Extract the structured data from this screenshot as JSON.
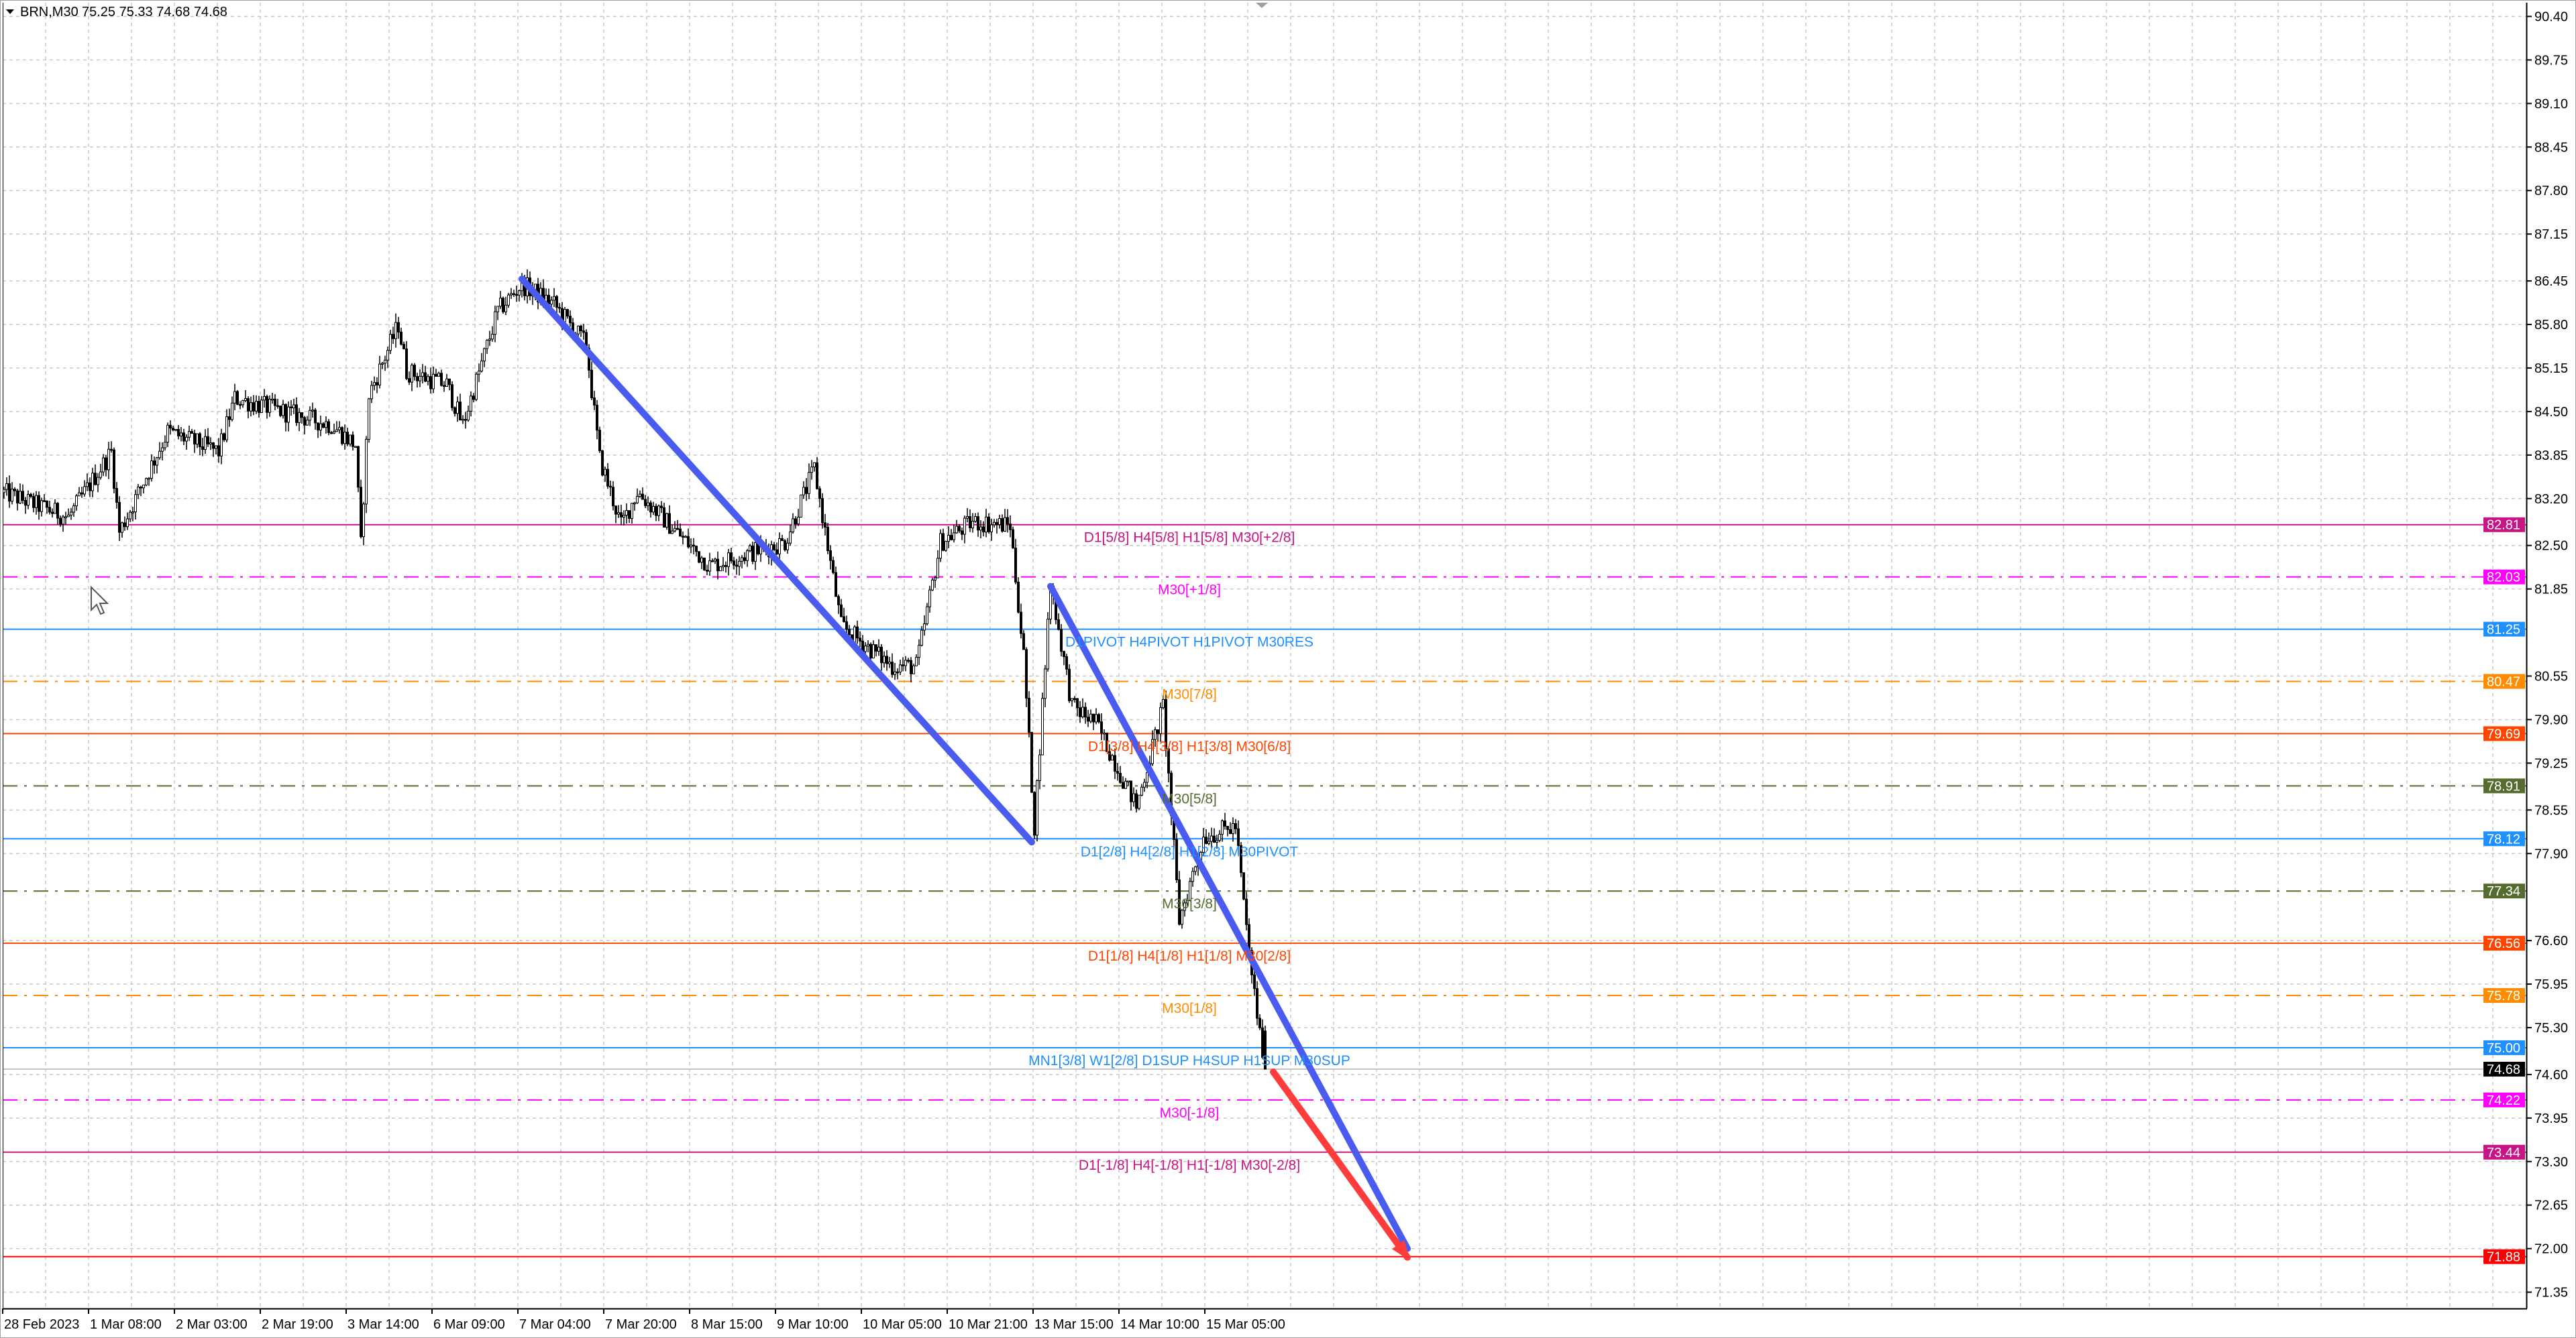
{
  "header": {
    "symbol": "BRN,M30",
    "ohlc": "75.25 75.33 74.68 74.68",
    "menu_icon": "triangle-down-icon"
  },
  "chart_data": {
    "type": "candlestick",
    "symbol": "BRN",
    "timeframe": "M30",
    "last_bar": {
      "open": 75.25,
      "high": 75.33,
      "low": 74.68,
      "close": 74.68
    },
    "ylim": [
      71.0,
      90.6
    ],
    "grid": true,
    "price_ticks": [
      "90.40",
      "89.75",
      "89.10",
      "88.45",
      "87.80",
      "87.15",
      "86.45",
      "85.80",
      "85.15",
      "84.50",
      "83.85",
      "83.20",
      "82.50",
      "81.85",
      "80.55",
      "79.90",
      "79.25",
      "78.55",
      "77.90",
      "76.60",
      "75.95",
      "75.30",
      "74.60",
      "73.95",
      "73.30",
      "72.65",
      "72.00",
      "71.35"
    ],
    "time_labels": [
      {
        "bar": 0,
        "label": "28 Feb 2023"
      },
      {
        "bar": 32,
        "label": "1 Mar 08:00"
      },
      {
        "bar": 64,
        "label": "2 Mar 03:00"
      },
      {
        "bar": 96,
        "label": "2 Mar 19:00"
      },
      {
        "bar": 128,
        "label": "3 Mar 14:00"
      },
      {
        "bar": 160,
        "label": "6 Mar 09:00"
      },
      {
        "bar": 192,
        "label": "7 Mar 04:00"
      },
      {
        "bar": 224,
        "label": "7 Mar 20:00"
      },
      {
        "bar": 256,
        "label": "8 Mar 15:00"
      },
      {
        "bar": 288,
        "label": "9 Mar 10:00"
      },
      {
        "bar": 320,
        "label": "10 Mar 05:00"
      },
      {
        "bar": 352,
        "label": "10 Mar 21:00"
      },
      {
        "bar": 384,
        "label": "13 Mar 15:00"
      },
      {
        "bar": 416,
        "label": "14 Mar 10:00"
      },
      {
        "bar": 448,
        "label": "15 Mar 05:00"
      }
    ],
    "price_path": [
      [
        0,
        83.29
      ],
      [
        24,
        82.92
      ],
      [
        40,
        83.9
      ],
      [
        43,
        82.7
      ],
      [
        61,
        84.2
      ],
      [
        80,
        83.9
      ],
      [
        86,
        84.7
      ],
      [
        122,
        84.3
      ],
      [
        131,
        84.0
      ],
      [
        133,
        82.5
      ],
      [
        136,
        84.75
      ],
      [
        147,
        85.8
      ],
      [
        150,
        85.1
      ],
      [
        165,
        84.9
      ],
      [
        171,
        84.3
      ],
      [
        184,
        86.0
      ],
      [
        193,
        86.4
      ],
      [
        205,
        86.1
      ],
      [
        217,
        85.5
      ],
      [
        222,
        83.8
      ],
      [
        230,
        82.8
      ],
      [
        236,
        83.3
      ],
      [
        263,
        82.2
      ],
      [
        291,
        82.55
      ],
      [
        302,
        83.65
      ],
      [
        312,
        81.3
      ],
      [
        331,
        80.7
      ],
      [
        340,
        80.7
      ],
      [
        349,
        82.55
      ],
      [
        361,
        82.85
      ],
      [
        375,
        82.8
      ],
      [
        380,
        80.85
      ],
      [
        384,
        78.3
      ],
      [
        390,
        81.95
      ],
      [
        398,
        80.1
      ],
      [
        407,
        79.85
      ],
      [
        422,
        78.6
      ],
      [
        432,
        80.1
      ],
      [
        438,
        76.9
      ],
      [
        447,
        78.15
      ],
      [
        459,
        78.3
      ],
      [
        464,
        76.4
      ],
      [
        468,
        75.2
      ],
      [
        470,
        74.68
      ]
    ],
    "trend_lines": [
      {
        "from": [
          193,
          86.48
        ],
        "to": [
          383,
          78.07
        ],
        "color": "#4a5cf0"
      },
      {
        "from": [
          390,
          81.89
        ],
        "to": [
          523,
          72.0
        ],
        "color": "#4a5cf0"
      }
    ],
    "arrow": {
      "from": [
        473,
        74.64
      ],
      "to": [
        523,
        71.87
      ],
      "color": "#ff3c3c"
    },
    "levels": [
      {
        "price": 82.81,
        "tag": "82.81",
        "label": "D1[5/8] H4[5/8] H1[5/8] M30[+2/8]",
        "color": "#c71585",
        "style": "solid"
      },
      {
        "price": 82.03,
        "tag": "82.03",
        "label": "M30[+1/8]",
        "color": "#ff00ff",
        "style": "dashdot"
      },
      {
        "price": 81.25,
        "tag": "81.25",
        "label": "D1PIVOT H4PIVOT H1PIVOT M30RES",
        "color": "#1e90ff",
        "style": "solid"
      },
      {
        "price": 80.47,
        "tag": "80.47",
        "label": "M30[7/8]",
        "color": "#ff8c00",
        "style": "dashdot"
      },
      {
        "price": 79.69,
        "tag": "79.69",
        "label": "D1[3/8] H4[3/8] H1[3/8] M30[6/8]",
        "color": "#ff4500",
        "style": "solid"
      },
      {
        "price": 78.91,
        "tag": "78.91",
        "label": "M30[5/8]",
        "color": "#556b2f",
        "style": "dashdot"
      },
      {
        "price": 78.12,
        "tag": "78.12",
        "label": "D1[2/8] H4[2/8] H1[2/8] M30PIVOT",
        "color": "#1e90ff",
        "style": "solid"
      },
      {
        "price": 77.34,
        "tag": "77.34",
        "label": "M30[3/8]",
        "color": "#556b2f",
        "style": "dashdot"
      },
      {
        "price": 76.56,
        "tag": "76.56",
        "label": "D1[1/8] H4[1/8] H1[1/8] M30[2/8]",
        "color": "#ff4500",
        "style": "solid"
      },
      {
        "price": 75.78,
        "tag": "75.78",
        "label": "M30[1/8]",
        "color": "#ff8c00",
        "style": "dashdot"
      },
      {
        "price": 75.0,
        "tag": "75.00",
        "label": "MN1[3/8] W1[2/8] D1SUP H4SUP H1SUP M30SUP",
        "color": "#1e90ff",
        "style": "solid"
      },
      {
        "price": 74.22,
        "tag": "74.22",
        "label": "M30[-1/8]",
        "color": "#ff00ff",
        "style": "dashdot"
      },
      {
        "price": 73.44,
        "tag": "73.44",
        "label": "D1[-1/8] H4[-1/8] H1[-1/8] M30[-2/8]",
        "color": "#c71585",
        "style": "solid"
      },
      {
        "price": 71.88,
        "tag": "71.88",
        "label": "",
        "color": "#ff0000",
        "style": "solid"
      }
    ],
    "current_price": {
      "price": 74.68,
      "tag": "74.68",
      "color": "#000000"
    }
  }
}
